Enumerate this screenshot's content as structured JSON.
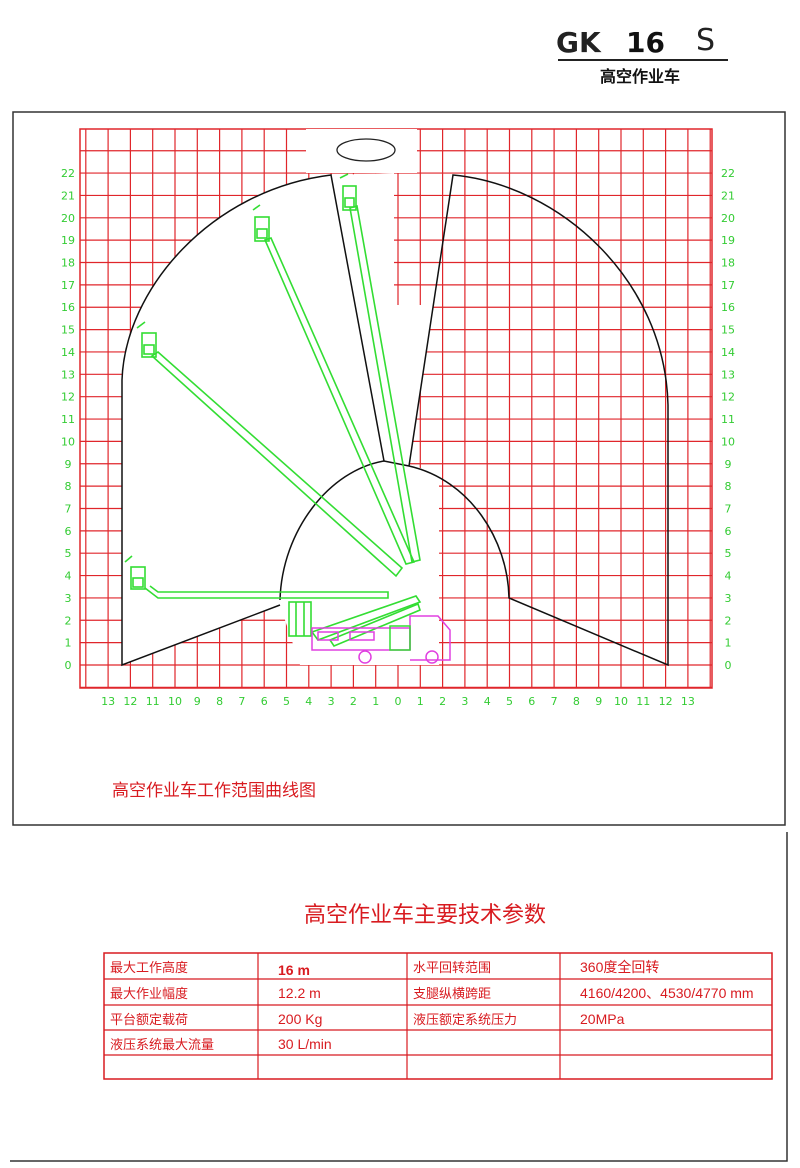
{
  "title_block": {
    "model_prefix": "GK",
    "model_number": "16",
    "model_suffix": "S",
    "subtitle": "高空作业车"
  },
  "diagram": {
    "caption": "高空作业车工作范围曲线图",
    "x_ticks": [
      "13",
      "12",
      "11",
      "10",
      "9",
      "8",
      "7",
      "6",
      "5",
      "4",
      "3",
      "2",
      "1",
      "0",
      "1",
      "2",
      "3",
      "4",
      "5",
      "6",
      "7",
      "8",
      "9",
      "10",
      "11",
      "12",
      "13"
    ],
    "y_ticks": [
      "0",
      "1",
      "2",
      "3",
      "4",
      "5",
      "6",
      "7",
      "8",
      "9",
      "10",
      "11",
      "12",
      "13",
      "14",
      "15",
      "16",
      "17",
      "18",
      "19",
      "20",
      "21",
      "22"
    ],
    "colors": {
      "grid": "#e0262b",
      "boom": "#33dd33",
      "truck": "#e040e0",
      "envelope": "#111111",
      "ticks": "#33cc33"
    }
  },
  "specs": {
    "title": "高空作业车主要技术参数",
    "rows": [
      {
        "label1": "最大工作高度",
        "value1": "16 m",
        "label2": "水平回转范围",
        "value2": "360度全回转"
      },
      {
        "label1": "最大作业幅度",
        "value1": "12.2 m",
        "label2": "支腿纵横跨距",
        "value2": "4160/4200、4530/4770 mm"
      },
      {
        "label1": "平台额定载荷",
        "value1": "200 Kg",
        "label2": "液压额定系统压力",
        "value2": "20MPa"
      },
      {
        "label1": "液压系统最大流量",
        "value1": "30 L/min",
        "label2": "",
        "value2": ""
      },
      {
        "label1": "",
        "value1": "",
        "label2": "",
        "value2": ""
      }
    ]
  }
}
